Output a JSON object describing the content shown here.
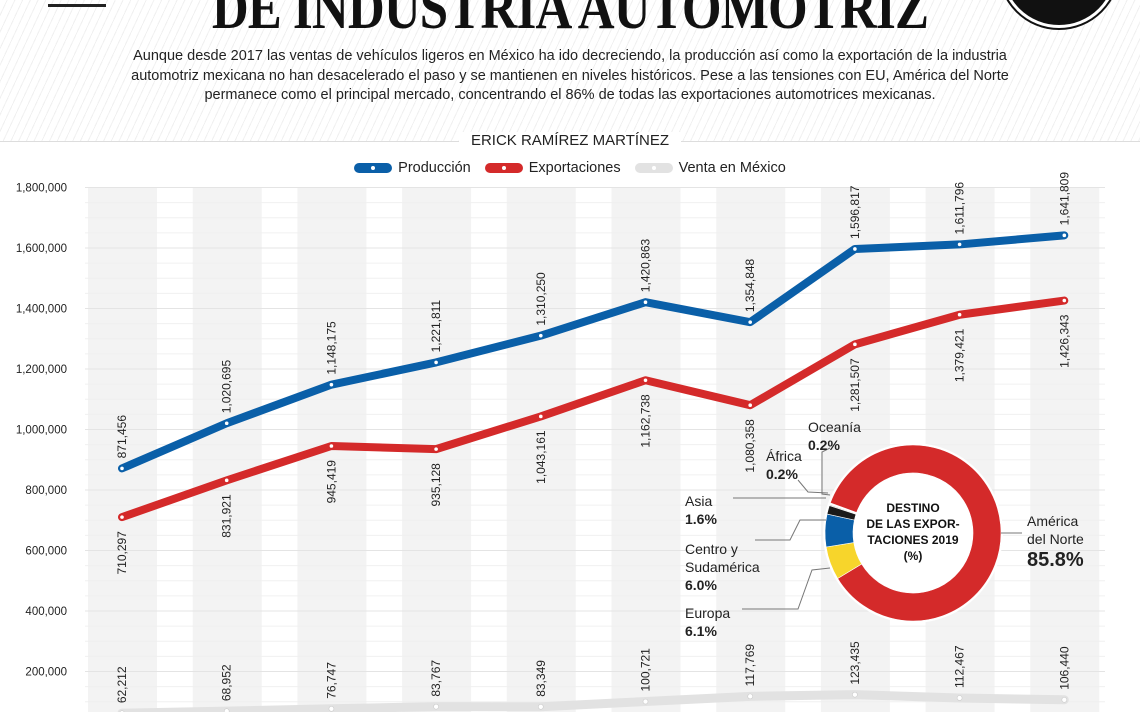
{
  "header": {
    "title": "DE INDUSTRIA AUTOMOTRIZ",
    "intro": "Aunque desde 2017 las ventas de vehículos ligeros en México ha ido decreciendo, la producción así como la exportación de la industria automotriz mexicana no han desacelerado el paso y se mantienen en niveles históricos. Pese a las tensiones con EU, América del Norte permanece como el principal mercado, concentrando el 86% de todas las exportaciones automotrices mexicanas.",
    "author": "ERICK RAMÍREZ MARTÍNEZ"
  },
  "chart_data": [
    {
      "type": "line",
      "ylim": [
        0,
        1800000
      ],
      "yticks": [
        "200,000",
        "400,000",
        "600,000",
        "800,000",
        "1,000,000",
        "1,200,000",
        "1,400,000",
        "1,600,000",
        "1,800,000"
      ],
      "ytick_values": [
        200000,
        400000,
        600000,
        800000,
        1000000,
        1200000,
        1400000,
        1600000,
        1800000
      ],
      "grid": true,
      "legend_placement": "top-center",
      "series": [
        {
          "name": "Producción",
          "color": "#0a5fa8",
          "values": [
            871456,
            1020695,
            1148175,
            1221811,
            1310250,
            1420863,
            1354848,
            1596817,
            1611796,
            1641809
          ],
          "labels": [
            "871,456",
            "1,020,695",
            "1,148,175",
            "1,221,811",
            "1,310,250",
            "1,420,863",
            "1,354,848",
            "1,596,817",
            "1,611,796",
            "1,641,809"
          ]
        },
        {
          "name": "Exportaciones",
          "color": "#d42a2a",
          "values": [
            710297,
            831921,
            945419,
            935128,
            1043161,
            1162738,
            1080358,
            1281507,
            1379421,
            1426343
          ],
          "labels": [
            "710,297",
            "831,921",
            "945,419",
            "935,128",
            "1,043,161",
            "1,162,738",
            "1,080,358",
            "1,281,507",
            "1,379,421",
            "1,426,343"
          ]
        },
        {
          "name": "Venta en México",
          "color": "#e2e2e2",
          "values": [
            62212,
            68952,
            76747,
            83767,
            83349,
            100721,
            117769,
            123435,
            112467,
            106440
          ],
          "labels": [
            "62,212",
            "68,952",
            "76,747",
            "83,767",
            "83,349",
            "100,721",
            "117,769",
            "123,435",
            "112,467",
            "106,440"
          ]
        }
      ]
    },
    {
      "type": "pie",
      "title": "DESTINO DE LAS EXPOR-TACIONES 2019 (%)",
      "title_lines": [
        "DESTINO",
        "DE LAS EXPOR-",
        "TACIONES 2019",
        "(%)"
      ],
      "slices": [
        {
          "name": "América del Norte",
          "name_lines": [
            "América",
            "del Norte"
          ],
          "value": 85.8,
          "label": "85.8%",
          "color": "#d42a2a"
        },
        {
          "name": "Europa",
          "name_lines": [
            "Europa"
          ],
          "value": 6.1,
          "label": "6.1%",
          "color": "#f7d52b"
        },
        {
          "name": "Centro y Sudamérica",
          "name_lines": [
            "Centro y",
            "Sudamérica"
          ],
          "value": 6.0,
          "label": "6.0%",
          "color": "#0a5fa8"
        },
        {
          "name": "Asia",
          "name_lines": [
            "Asia"
          ],
          "value": 1.6,
          "label": "1.6%",
          "color": "#1a1a1a"
        },
        {
          "name": "África",
          "name_lines": [
            "África"
          ],
          "value": 0.2,
          "label": "0.2%",
          "color": "#bbbbbb"
        },
        {
          "name": "Oceanía",
          "name_lines": [
            "Oceanía"
          ],
          "value": 0.2,
          "label": "0.2%",
          "color": "#ffffff"
        }
      ]
    }
  ]
}
